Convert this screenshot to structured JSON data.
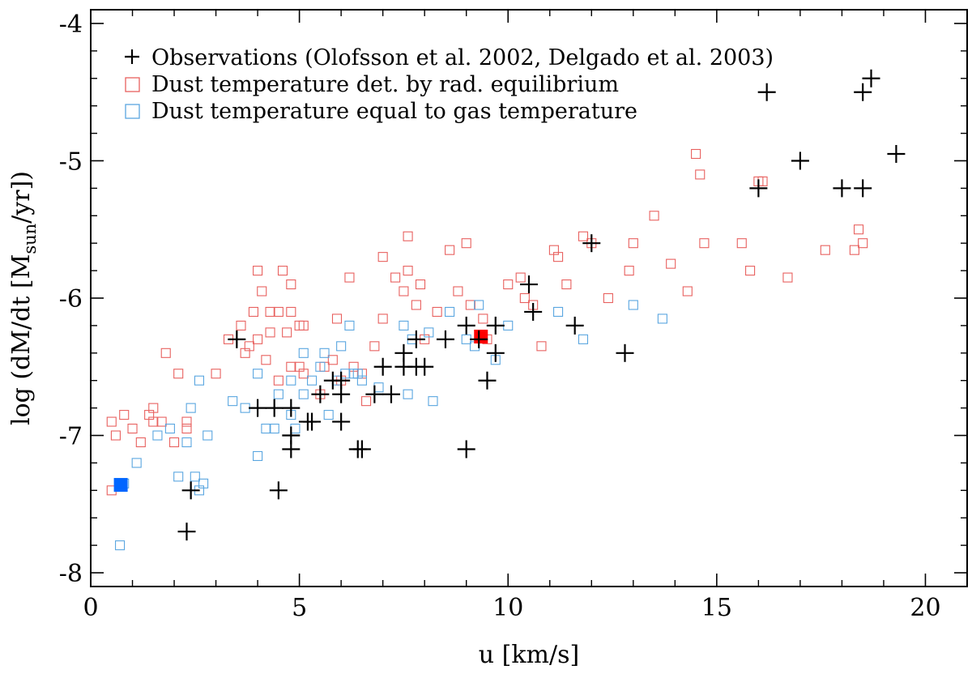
{
  "chart_data": {
    "type": "scatter",
    "title": "",
    "xlabel": "u [km/s]",
    "ylabel_parts": {
      "pre": "log (dM/dt [M",
      "sub": "sun",
      "post": "/yr])"
    },
    "xlim": [
      0,
      21
    ],
    "ylim": [
      -8.1,
      -3.9
    ],
    "x_ticks": [
      0,
      5,
      10,
      15,
      20
    ],
    "x_tick_labels": [
      "0",
      "5",
      "10",
      "15",
      "20"
    ],
    "y_ticks": [
      -8,
      -7,
      -6,
      -5,
      -4
    ],
    "y_tick_labels": [
      "-8",
      "-7",
      "-6",
      "-5",
      "-4"
    ],
    "grid": false,
    "legend_position": "top-left",
    "colors": {
      "observations": "#000000",
      "rad_equilibrium": "#e8615f",
      "gas_temperature": "#5aa6e0",
      "highlight_red": "#ff0000",
      "highlight_blue": "#0066ff"
    },
    "series": [
      {
        "name": "Observations (Olofsson et al. 2002, Delgado et al. 2003)",
        "marker": "plus",
        "points": [
          [
            2.3,
            -7.7
          ],
          [
            2.4,
            -7.4
          ],
          [
            3.5,
            -6.3
          ],
          [
            4.0,
            -6.8
          ],
          [
            4.4,
            -6.8
          ],
          [
            4.5,
            -7.4
          ],
          [
            4.8,
            -6.8
          ],
          [
            4.8,
            -7.0
          ],
          [
            4.8,
            -7.1
          ],
          [
            5.2,
            -6.9
          ],
          [
            5.3,
            -6.9
          ],
          [
            5.5,
            -6.7
          ],
          [
            5.8,
            -6.6
          ],
          [
            6.0,
            -6.6
          ],
          [
            6.0,
            -6.7
          ],
          [
            6.0,
            -6.9
          ],
          [
            6.4,
            -7.1
          ],
          [
            6.5,
            -7.1
          ],
          [
            6.8,
            -6.7
          ],
          [
            7.0,
            -6.5
          ],
          [
            7.2,
            -6.7
          ],
          [
            7.5,
            -6.5
          ],
          [
            7.5,
            -6.4
          ],
          [
            7.8,
            -6.3
          ],
          [
            7.8,
            -6.5
          ],
          [
            8.0,
            -6.5
          ],
          [
            8.5,
            -6.3
          ],
          [
            9.0,
            -6.2
          ],
          [
            9.0,
            -7.1
          ],
          [
            9.3,
            -6.3
          ],
          [
            9.5,
            -6.6
          ],
          [
            9.7,
            -6.2
          ],
          [
            9.7,
            -6.4
          ],
          [
            10.5,
            -5.9
          ],
          [
            10.6,
            -6.1
          ],
          [
            11.6,
            -6.2
          ],
          [
            12.0,
            -5.6
          ],
          [
            12.8,
            -6.4
          ],
          [
            16.0,
            -5.2
          ],
          [
            16.2,
            -4.5
          ],
          [
            17.0,
            -5.0
          ],
          [
            18.0,
            -5.2
          ],
          [
            18.5,
            -5.2
          ],
          [
            18.5,
            -4.5
          ],
          [
            18.7,
            -4.4
          ],
          [
            19.3,
            -4.95
          ]
        ]
      },
      {
        "name": "Dust temperature det. by rad. equilibrium",
        "marker": "open-square",
        "points": [
          [
            0.5,
            -7.4
          ],
          [
            0.5,
            -6.9
          ],
          [
            0.6,
            -7.0
          ],
          [
            0.8,
            -6.85
          ],
          [
            1.0,
            -6.95
          ],
          [
            1.2,
            -7.05
          ],
          [
            1.4,
            -6.85
          ],
          [
            1.5,
            -6.8
          ],
          [
            1.5,
            -6.9
          ],
          [
            1.7,
            -6.9
          ],
          [
            1.8,
            -6.4
          ],
          [
            2.0,
            -7.05
          ],
          [
            2.1,
            -6.55
          ],
          [
            2.3,
            -6.95
          ],
          [
            2.3,
            -6.9
          ],
          [
            3.0,
            -6.55
          ],
          [
            3.3,
            -6.3
          ],
          [
            3.6,
            -6.2
          ],
          [
            3.7,
            -6.4
          ],
          [
            3.8,
            -6.35
          ],
          [
            3.9,
            -6.1
          ],
          [
            4.0,
            -6.3
          ],
          [
            4.0,
            -5.8
          ],
          [
            4.1,
            -5.95
          ],
          [
            4.2,
            -6.45
          ],
          [
            4.3,
            -6.1
          ],
          [
            4.3,
            -6.25
          ],
          [
            4.5,
            -6.1
          ],
          [
            4.5,
            -6.6
          ],
          [
            4.6,
            -5.8
          ],
          [
            4.7,
            -6.25
          ],
          [
            4.8,
            -6.5
          ],
          [
            4.8,
            -6.1
          ],
          [
            4.8,
            -5.9
          ],
          [
            5.0,
            -6.2
          ],
          [
            5.0,
            -6.5
          ],
          [
            5.1,
            -6.55
          ],
          [
            5.1,
            -6.2
          ],
          [
            5.5,
            -6.7
          ],
          [
            5.6,
            -6.5
          ],
          [
            5.8,
            -6.45
          ],
          [
            5.9,
            -6.15
          ],
          [
            6.0,
            -6.6
          ],
          [
            6.2,
            -5.85
          ],
          [
            6.3,
            -6.5
          ],
          [
            6.5,
            -6.55
          ],
          [
            6.6,
            -6.75
          ],
          [
            6.8,
            -6.35
          ],
          [
            7.0,
            -5.7
          ],
          [
            7.0,
            -6.15
          ],
          [
            7.3,
            -5.85
          ],
          [
            7.5,
            -5.95
          ],
          [
            7.6,
            -5.55
          ],
          [
            7.6,
            -5.8
          ],
          [
            7.8,
            -6.05
          ],
          [
            7.9,
            -5.9
          ],
          [
            8.0,
            -6.3
          ],
          [
            8.3,
            -6.1
          ],
          [
            8.6,
            -5.65
          ],
          [
            8.8,
            -5.95
          ],
          [
            9.0,
            -5.6
          ],
          [
            9.1,
            -6.05
          ],
          [
            9.4,
            -6.15
          ],
          [
            9.5,
            -6.3
          ],
          [
            10.0,
            -5.9
          ],
          [
            10.3,
            -5.85
          ],
          [
            10.4,
            -6.0
          ],
          [
            10.6,
            -6.05
          ],
          [
            10.8,
            -6.35
          ],
          [
            11.1,
            -5.65
          ],
          [
            11.2,
            -5.7
          ],
          [
            11.4,
            -5.9
          ],
          [
            11.8,
            -5.55
          ],
          [
            12.0,
            -5.6
          ],
          [
            12.4,
            -6.0
          ],
          [
            12.9,
            -5.8
          ],
          [
            13.0,
            -5.6
          ],
          [
            13.5,
            -5.4
          ],
          [
            13.9,
            -5.75
          ],
          [
            14.3,
            -5.95
          ],
          [
            14.5,
            -4.95
          ],
          [
            14.6,
            -5.1
          ],
          [
            14.7,
            -5.6
          ],
          [
            15.6,
            -5.6
          ],
          [
            15.8,
            -5.8
          ],
          [
            16.0,
            -5.15
          ],
          [
            16.1,
            -5.15
          ],
          [
            16.7,
            -5.85
          ],
          [
            17.6,
            -5.65
          ],
          [
            18.3,
            -5.65
          ],
          [
            18.4,
            -5.5
          ],
          [
            18.5,
            -5.6
          ]
        ]
      },
      {
        "name": "Dust temperature equal to gas temperature",
        "marker": "open-square",
        "points": [
          [
            0.7,
            -7.8
          ],
          [
            0.8,
            -7.35
          ],
          [
            1.1,
            -7.2
          ],
          [
            1.6,
            -7.0
          ],
          [
            1.9,
            -6.95
          ],
          [
            2.1,
            -7.3
          ],
          [
            2.3,
            -7.05
          ],
          [
            2.4,
            -6.8
          ],
          [
            2.5,
            -7.3
          ],
          [
            2.6,
            -7.4
          ],
          [
            2.6,
            -6.6
          ],
          [
            2.7,
            -7.35
          ],
          [
            2.8,
            -7.0
          ],
          [
            3.4,
            -6.75
          ],
          [
            3.7,
            -6.8
          ],
          [
            4.0,
            -7.15
          ],
          [
            4.0,
            -6.55
          ],
          [
            4.2,
            -6.95
          ],
          [
            4.4,
            -6.95
          ],
          [
            4.5,
            -6.7
          ],
          [
            4.8,
            -6.85
          ],
          [
            4.8,
            -6.6
          ],
          [
            4.9,
            -6.95
          ],
          [
            5.1,
            -6.4
          ],
          [
            5.1,
            -6.7
          ],
          [
            5.3,
            -6.6
          ],
          [
            5.5,
            -6.5
          ],
          [
            5.6,
            -6.4
          ],
          [
            5.7,
            -6.85
          ],
          [
            5.9,
            -6.6
          ],
          [
            6.0,
            -6.35
          ],
          [
            6.1,
            -6.55
          ],
          [
            6.2,
            -6.2
          ],
          [
            6.3,
            -6.55
          ],
          [
            6.4,
            -6.55
          ],
          [
            6.5,
            -6.6
          ],
          [
            6.9,
            -6.65
          ],
          [
            7.5,
            -6.2
          ],
          [
            7.6,
            -6.7
          ],
          [
            7.7,
            -6.3
          ],
          [
            8.1,
            -6.25
          ],
          [
            8.2,
            -6.75
          ],
          [
            8.6,
            -6.1
          ],
          [
            9.0,
            -6.3
          ],
          [
            9.2,
            -6.35
          ],
          [
            9.3,
            -6.05
          ],
          [
            9.7,
            -6.45
          ],
          [
            10.0,
            -6.2
          ],
          [
            11.2,
            -6.1
          ],
          [
            11.8,
            -6.3
          ],
          [
            13.0,
            -6.05
          ],
          [
            13.7,
            -6.15
          ]
        ]
      }
    ],
    "highlighted_points": [
      {
        "color": "highlight_red",
        "x": 9.35,
        "y": -6.28
      },
      {
        "color": "highlight_blue",
        "x": 0.72,
        "y": -7.36
      }
    ]
  }
}
